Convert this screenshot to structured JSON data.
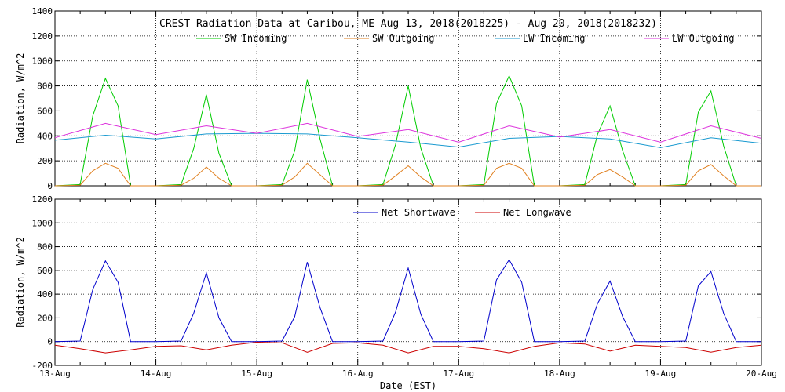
{
  "chart_data": [
    {
      "type": "line",
      "title": "CREST Radiation Data at Caribou, ME   Aug 13, 2018(2018225) - Aug 20, 2018(2018232)",
      "ylabel": "Radiation, W/m^2",
      "xlabel": "",
      "xlim": [
        "2018-08-13",
        "2018-08-20"
      ],
      "ylim": [
        0,
        1400
      ],
      "yticks": [
        0,
        200,
        400,
        600,
        800,
        1000,
        1200,
        1400
      ],
      "grid": true,
      "legend": "top-center",
      "series": [
        {
          "name": "SW Incoming",
          "color": "#00cc00",
          "x": [
            "2018-08-13 00:00",
            "2018-08-13 06:00",
            "2018-08-13 09:00",
            "2018-08-13 12:00",
            "2018-08-13 15:00",
            "2018-08-13 18:00",
            "2018-08-14 00:00",
            "2018-08-14 06:00",
            "2018-08-14 09:00",
            "2018-08-14 12:00",
            "2018-08-14 15:00",
            "2018-08-14 18:00",
            "2018-08-15 00:00",
            "2018-08-15 06:00",
            "2018-08-15 09:00",
            "2018-08-15 12:00",
            "2018-08-15 15:00",
            "2018-08-15 18:00",
            "2018-08-16 00:00",
            "2018-08-16 06:00",
            "2018-08-16 09:00",
            "2018-08-16 12:00",
            "2018-08-16 15:00",
            "2018-08-16 18:00",
            "2018-08-17 00:00",
            "2018-08-17 06:00",
            "2018-08-17 09:00",
            "2018-08-17 12:00",
            "2018-08-17 15:00",
            "2018-08-17 18:00",
            "2018-08-18 00:00",
            "2018-08-18 06:00",
            "2018-08-18 09:00",
            "2018-08-18 12:00",
            "2018-08-18 15:00",
            "2018-08-18 18:00",
            "2018-08-19 00:00",
            "2018-08-19 06:00",
            "2018-08-19 09:00",
            "2018-08-19 12:00",
            "2018-08-19 15:00",
            "2018-08-19 18:00",
            "2018-08-20 00:00"
          ],
          "y": [
            0,
            10,
            560,
            860,
            640,
            0,
            0,
            10,
            300,
            730,
            260,
            0,
            0,
            10,
            280,
            850,
            380,
            0,
            0,
            10,
            330,
            800,
            300,
            0,
            0,
            10,
            660,
            880,
            640,
            0,
            0,
            10,
            410,
            640,
            280,
            0,
            0,
            10,
            590,
            760,
            320,
            0,
            0
          ]
        },
        {
          "name": "SW Outgoing",
          "color": "#e08020",
          "x": [
            "2018-08-13 00:00",
            "2018-08-13 06:00",
            "2018-08-13 09:00",
            "2018-08-13 12:00",
            "2018-08-13 15:00",
            "2018-08-13 18:00",
            "2018-08-14 00:00",
            "2018-08-14 06:00",
            "2018-08-14 09:00",
            "2018-08-14 12:00",
            "2018-08-14 15:00",
            "2018-08-14 18:00",
            "2018-08-15 00:00",
            "2018-08-15 06:00",
            "2018-08-15 09:00",
            "2018-08-15 12:00",
            "2018-08-15 15:00",
            "2018-08-15 18:00",
            "2018-08-16 00:00",
            "2018-08-16 06:00",
            "2018-08-16 09:00",
            "2018-08-16 12:00",
            "2018-08-16 15:00",
            "2018-08-16 18:00",
            "2018-08-17 00:00",
            "2018-08-17 06:00",
            "2018-08-17 09:00",
            "2018-08-17 12:00",
            "2018-08-17 15:00",
            "2018-08-17 18:00",
            "2018-08-18 00:00",
            "2018-08-18 06:00",
            "2018-08-18 09:00",
            "2018-08-18 12:00",
            "2018-08-18 15:00",
            "2018-08-18 18:00",
            "2018-08-19 00:00",
            "2018-08-19 06:00",
            "2018-08-19 09:00",
            "2018-08-19 12:00",
            "2018-08-19 15:00",
            "2018-08-19 18:00",
            "2018-08-20 00:00"
          ],
          "y": [
            0,
            5,
            120,
            180,
            140,
            0,
            0,
            5,
            60,
            150,
            60,
            0,
            0,
            5,
            70,
            180,
            90,
            0,
            0,
            5,
            80,
            160,
            70,
            0,
            0,
            5,
            140,
            180,
            140,
            0,
            0,
            5,
            90,
            130,
            70,
            0,
            0,
            5,
            120,
            170,
            80,
            0,
            0
          ]
        },
        {
          "name": "LW Incoming",
          "color": "#1a9ad0",
          "x": [
            "2018-08-13 00:00",
            "2018-08-13 12:00",
            "2018-08-14 00:00",
            "2018-08-14 12:00",
            "2018-08-15 00:00",
            "2018-08-15 12:00",
            "2018-08-16 00:00",
            "2018-08-16 12:00",
            "2018-08-17 00:00",
            "2018-08-17 12:00",
            "2018-08-18 00:00",
            "2018-08-18 12:00",
            "2018-08-19 00:00",
            "2018-08-19 12:00",
            "2018-08-20 00:00"
          ],
          "y": [
            365,
            405,
            375,
            415,
            420,
            415,
            385,
            350,
            310,
            380,
            395,
            375,
            305,
            385,
            340
          ]
        },
        {
          "name": "LW Outgoing",
          "color": "#dd33dd",
          "x": [
            "2018-08-13 00:00",
            "2018-08-13 12:00",
            "2018-08-14 00:00",
            "2018-08-14 12:00",
            "2018-08-15 00:00",
            "2018-08-15 12:00",
            "2018-08-16 00:00",
            "2018-08-16 12:00",
            "2018-08-17 00:00",
            "2018-08-17 12:00",
            "2018-08-18 00:00",
            "2018-08-18 12:00",
            "2018-08-19 00:00",
            "2018-08-19 12:00",
            "2018-08-20 00:00"
          ],
          "y": [
            385,
            500,
            410,
            480,
            420,
            500,
            395,
            450,
            350,
            480,
            390,
            450,
            350,
            480,
            380
          ]
        }
      ]
    },
    {
      "type": "line",
      "title": "",
      "ylabel": "Radiation, W/m^2",
      "xlabel": "Date (EST)",
      "xlim": [
        "2018-08-13",
        "2018-08-20"
      ],
      "ylim": [
        -200,
        1200
      ],
      "yticks": [
        -200,
        0,
        200,
        400,
        600,
        800,
        1000,
        1200
      ],
      "xticks": [
        "13-Aug",
        "14-Aug",
        "15-Aug",
        "16-Aug",
        "17-Aug",
        "18-Aug",
        "19-Aug",
        "20-Aug"
      ],
      "grid": true,
      "legend": "top-center",
      "series": [
        {
          "name": "Net Shortwave",
          "color": "#0000cc",
          "x": [
            "2018-08-13 00:00",
            "2018-08-13 06:00",
            "2018-08-13 09:00",
            "2018-08-13 12:00",
            "2018-08-13 15:00",
            "2018-08-13 18:00",
            "2018-08-14 00:00",
            "2018-08-14 06:00",
            "2018-08-14 09:00",
            "2018-08-14 12:00",
            "2018-08-14 15:00",
            "2018-08-14 18:00",
            "2018-08-15 00:00",
            "2018-08-15 06:00",
            "2018-08-15 09:00",
            "2018-08-15 12:00",
            "2018-08-15 15:00",
            "2018-08-15 18:00",
            "2018-08-16 00:00",
            "2018-08-16 06:00",
            "2018-08-16 09:00",
            "2018-08-16 12:00",
            "2018-08-16 15:00",
            "2018-08-16 18:00",
            "2018-08-17 00:00",
            "2018-08-17 06:00",
            "2018-08-17 09:00",
            "2018-08-17 12:00",
            "2018-08-17 15:00",
            "2018-08-17 18:00",
            "2018-08-18 00:00",
            "2018-08-18 06:00",
            "2018-08-18 09:00",
            "2018-08-18 12:00",
            "2018-08-18 15:00",
            "2018-08-18 18:00",
            "2018-08-19 00:00",
            "2018-08-19 06:00",
            "2018-08-19 09:00",
            "2018-08-19 12:00",
            "2018-08-19 15:00",
            "2018-08-19 18:00",
            "2018-08-20 00:00"
          ],
          "y": [
            0,
            5,
            440,
            680,
            500,
            0,
            0,
            5,
            240,
            580,
            200,
            0,
            0,
            5,
            210,
            670,
            290,
            0,
            0,
            5,
            250,
            620,
            230,
            0,
            0,
            5,
            520,
            690,
            500,
            0,
            0,
            5,
            320,
            510,
            210,
            0,
            0,
            5,
            470,
            590,
            240,
            0,
            0
          ]
        },
        {
          "name": "Net Longwave",
          "color": "#cc0000",
          "x": [
            "2018-08-13 00:00",
            "2018-08-13 06:00",
            "2018-08-13 12:00",
            "2018-08-13 18:00",
            "2018-08-14 00:00",
            "2018-08-14 06:00",
            "2018-08-14 12:00",
            "2018-08-14 18:00",
            "2018-08-15 00:00",
            "2018-08-15 06:00",
            "2018-08-15 12:00",
            "2018-08-15 18:00",
            "2018-08-16 00:00",
            "2018-08-16 06:00",
            "2018-08-16 12:00",
            "2018-08-16 18:00",
            "2018-08-17 00:00",
            "2018-08-17 06:00",
            "2018-08-17 12:00",
            "2018-08-17 18:00",
            "2018-08-18 00:00",
            "2018-08-18 06:00",
            "2018-08-18 12:00",
            "2018-08-18 18:00",
            "2018-08-19 00:00",
            "2018-08-19 06:00",
            "2018-08-19 12:00",
            "2018-08-19 18:00",
            "2018-08-20 00:00"
          ],
          "y": [
            -30,
            -60,
            -95,
            -70,
            -40,
            -35,
            -70,
            -30,
            -5,
            -10,
            -90,
            -15,
            -10,
            -30,
            -95,
            -40,
            -40,
            -60,
            -95,
            -40,
            -10,
            -20,
            -80,
            -30,
            -40,
            -50,
            -90,
            -50,
            -30
          ]
        }
      ]
    }
  ]
}
